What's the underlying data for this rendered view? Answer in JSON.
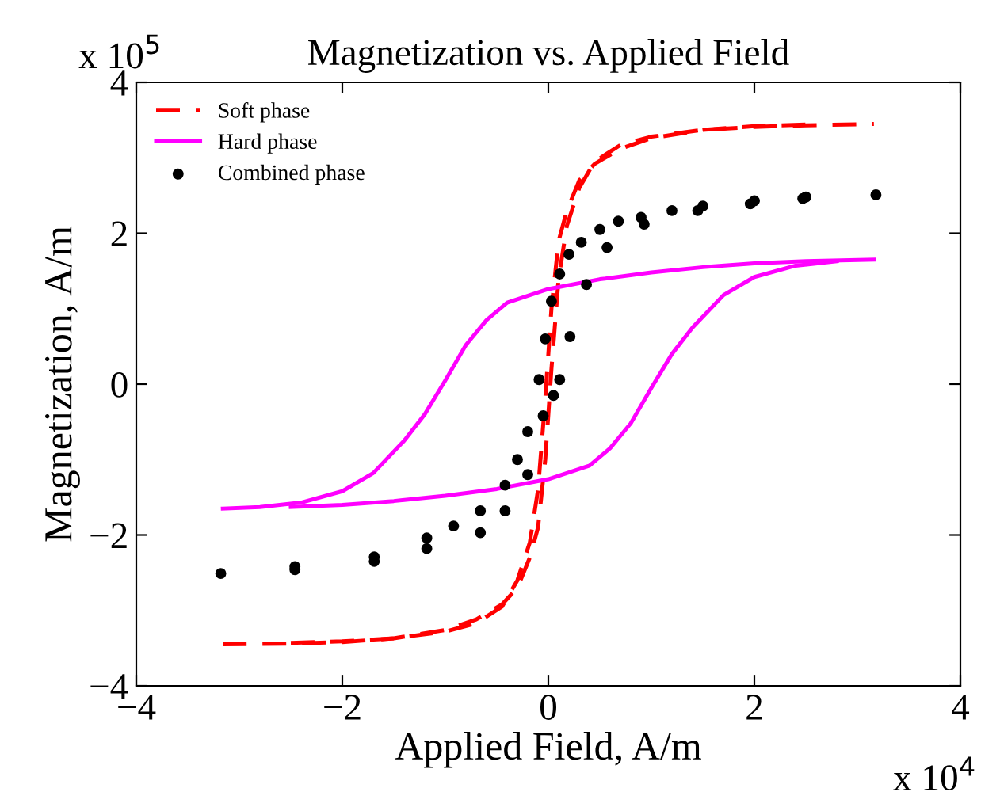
{
  "chart_data": {
    "type": "line",
    "title": "Magnetization vs. Applied Field",
    "xlabel": "Applied Field, A/m",
    "ylabel": "Magnetization, A/m",
    "annotations": [
      "x 10$^{5}$",
      "x 10$^{4}$"
    ],
    "xlim": [
      -4,
      4
    ],
    "xticks": [
      {
        "value": -4,
        "label": "−4"
      },
      {
        "value": -2,
        "label": "−2"
      },
      0,
      2,
      4
    ],
    "ylim": [
      -4,
      4
    ],
    "yticks": [
      {
        "value": -4,
        "label": "−4"
      },
      {
        "value": -2,
        "label": "−2"
      },
      0,
      2,
      4
    ],
    "grid": false,
    "legend": "top left",
    "series": [
      {
        "name": "Soft phase",
        "color": "#ff0000",
        "line_style": "dashed",
        "marker": "none",
        "x": [
          -3.16,
          -2.5,
          -2,
          -1.5,
          -1,
          -0.7,
          -0.45,
          -0.3,
          -0.18,
          -0.1,
          -0.03,
          0.03,
          0.1,
          0.18,
          0.3,
          0.45,
          0.7,
          1,
          1.5,
          2,
          2.5,
          3.16
        ],
        "values": [
          -3.45,
          -3.44,
          -3.42,
          -3.37,
          -3.26,
          -3.12,
          -2.92,
          -2.7,
          -2.3,
          -1.9,
          -1.0,
          0.2,
          1.4,
          2.1,
          2.6,
          2.95,
          3.17,
          3.28,
          3.37,
          3.41,
          3.43,
          3.45
        ]
      },
      {
        "color": "#ff0000",
        "line_style": "dashed",
        "marker": "none",
        "x": [
          -2.5,
          -2,
          -1.5,
          -1,
          -0.7,
          -0.45,
          -0.3,
          -0.18,
          -0.1,
          -0.03,
          0.03,
          0.1,
          0.18,
          0.3,
          0.45,
          0.7,
          1,
          1.5,
          2,
          2.5
        ],
        "values": [
          -3.43,
          -3.41,
          -3.37,
          -3.28,
          -3.17,
          -2.95,
          -2.6,
          -2.1,
          -1.4,
          -0.2,
          1.0,
          1.9,
          2.3,
          2.7,
          2.92,
          3.12,
          3.26,
          3.37,
          3.42,
          3.44
        ]
      },
      {
        "name": "Hard phase",
        "color": "#ff00ff",
        "line_style": "solid",
        "marker": "none",
        "x": [
          -3.16,
          -2.8,
          -2.4,
          -2.0,
          -1.7,
          -1.4,
          -1.2,
          -1.0,
          -0.8,
          -0.6,
          -0.4,
          0,
          0.5,
          1,
          1.5,
          2,
          2.5,
          3.16
        ],
        "values": [
          -1.65,
          -1.63,
          -1.57,
          -1.42,
          -1.18,
          -0.75,
          -0.4,
          0.05,
          0.52,
          0.85,
          1.08,
          1.26,
          1.39,
          1.48,
          1.55,
          1.6,
          1.63,
          1.65
        ]
      },
      {
        "color": "#ff00ff",
        "line_style": "solid",
        "marker": "none",
        "x": [
          -2.5,
          -2,
          -1.5,
          -1,
          -0.5,
          0,
          0.4,
          0.6,
          0.8,
          1.0,
          1.2,
          1.4,
          1.7,
          2.0,
          2.4,
          2.8
        ],
        "values": [
          -1.63,
          -1.6,
          -1.55,
          -1.48,
          -1.39,
          -1.26,
          -1.08,
          -0.85,
          -0.52,
          -0.05,
          0.4,
          0.75,
          1.18,
          1.42,
          1.57,
          1.63
        ]
      },
      {
        "name": "Combined phase",
        "type": "scatter",
        "color": "#000000",
        "marker": "circle",
        "x": [
          3.18,
          2.5,
          2,
          1.5,
          1.2,
          0.9,
          0.68,
          0.5,
          0.32,
          0.2,
          0.11,
          0.03,
          -0.03,
          -0.09,
          -0.2,
          -0.3,
          -0.42,
          -0.66,
          -0.92,
          -1.18,
          -1.69,
          -2.46,
          -3.18,
          -2.46,
          -1.69,
          -1.18,
          -0.66,
          -0.42,
          -0.2,
          -0.05,
          0.05,
          0.11,
          0.21,
          0.37,
          0.57,
          0.93,
          1.45,
          1.96,
          2.47
        ],
        "values": [
          2.51,
          2.48,
          2.43,
          2.36,
          2.3,
          2.21,
          2.16,
          2.05,
          1.88,
          1.72,
          1.46,
          1.1,
          0.6,
          0.06,
          -0.63,
          -1.0,
          -1.34,
          -1.68,
          -1.88,
          -2.04,
          -2.29,
          -2.42,
          -2.51,
          -2.46,
          -2.35,
          -2.18,
          -1.97,
          -1.68,
          -1.2,
          -0.42,
          -0.15,
          0.06,
          0.63,
          1.32,
          1.81,
          2.12,
          2.3,
          2.39,
          2.46
        ]
      }
    ]
  }
}
